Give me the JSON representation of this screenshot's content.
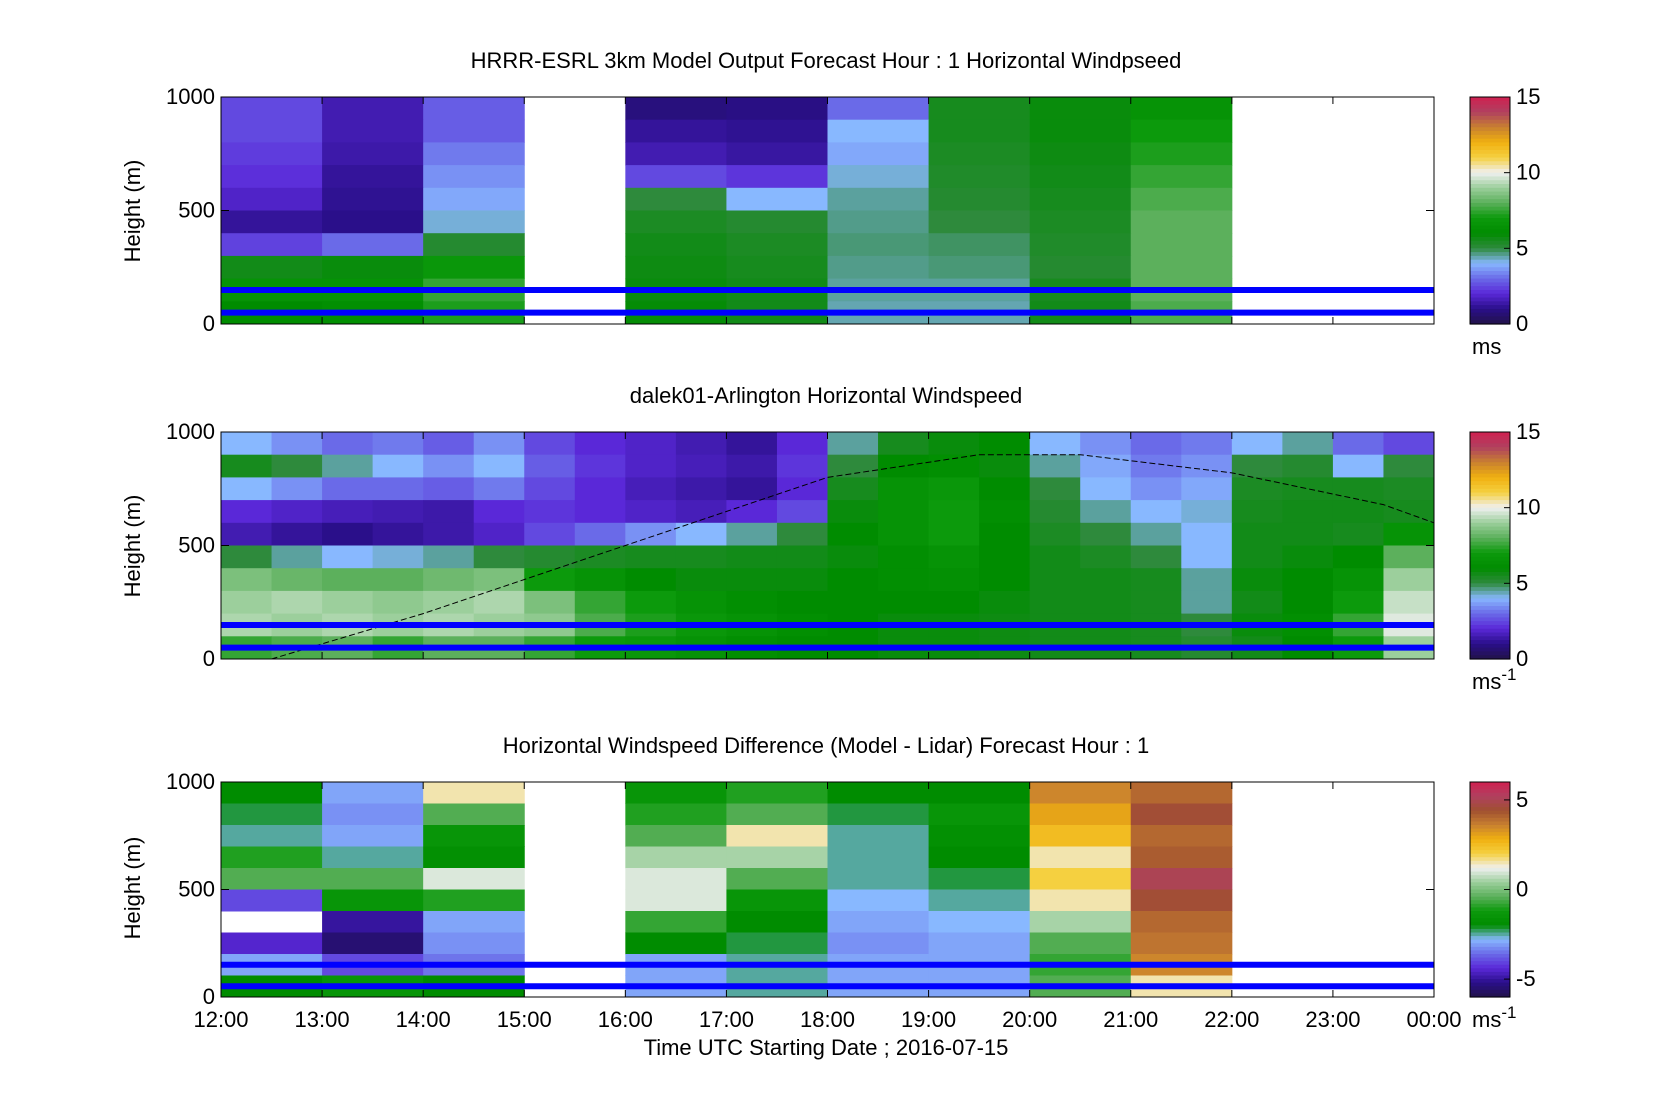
{
  "figure": {
    "xlabel": "Time UTC  Starting Date ; 2016-07-15"
  },
  "colors": {
    "lidar_line": "#0000ff",
    "windspeed_cmap": [
      "#22124a",
      "#2a0f8a",
      "#5a28d8",
      "#6a6ae8",
      "#88b8ff",
      "#2e8a3c",
      "#008c00",
      "#0c9a0c",
      "#5cb05c",
      "#9ccf9c",
      "#f0f0f0",
      "#f5d040",
      "#f0b010",
      "#c88030",
      "#b04060",
      "#d02050"
    ],
    "diff_cmap": [
      "#22124a",
      "#2a0f8a",
      "#5a28d8",
      "#6a6ae8",
      "#88b8ff",
      "#008c00",
      "#0c9a0c",
      "#5cb05c",
      "#9ccf9c",
      "#f0f0f0",
      "#f5d040",
      "#f0b010",
      "#c88030",
      "#a05030",
      "#b04060",
      "#d02050"
    ]
  },
  "chart_data": [
    {
      "type": "heatmap",
      "title": "HRRR-ESRL 3km Model Output   Forecast Hour : 1 Horizontal Windpseed",
      "ylabel": "Height (m)",
      "ylim": [
        0,
        1000
      ],
      "yticks": [
        0,
        500,
        1000
      ],
      "xlim": [
        "12:00",
        "00:00"
      ],
      "colorbar": {
        "label": "ms",
        "ticks": [
          0,
          5,
          10,
          15
        ],
        "range": [
          0,
          15
        ]
      },
      "horizontal_lines_m": [
        150,
        50
      ],
      "x_bins": [
        "12:00",
        "13:00",
        "14:00",
        "15:00",
        "16:00",
        "17:00",
        "18:00",
        "19:00",
        "20:00",
        "21:00",
        "22:00",
        "23:00"
      ],
      "height_bins_m": [
        950,
        850,
        750,
        650,
        550,
        450,
        350,
        250,
        150,
        50
      ],
      "values": [
        [
          2.5,
          1.5,
          2.8,
          null,
          0.8,
          0.9,
          3.0,
          5.5,
          5.8,
          6.5,
          null,
          null
        ],
        [
          2.5,
          1.5,
          2.8,
          null,
          1.2,
          1.1,
          4.0,
          5.5,
          5.8,
          7.0,
          null,
          null
        ],
        [
          2.3,
          1.4,
          3.2,
          null,
          1.5,
          1.3,
          3.8,
          5.4,
          5.7,
          7.2,
          null,
          null
        ],
        [
          2.1,
          1.2,
          3.5,
          null,
          2.5,
          2.2,
          4.2,
          5.3,
          5.6,
          7.5,
          null,
          null
        ],
        [
          1.8,
          1.1,
          3.8,
          null,
          5.0,
          4.0,
          4.5,
          5.2,
          5.5,
          7.8,
          null,
          null
        ],
        [
          1.2,
          1.0,
          4.2,
          null,
          5.4,
          5.2,
          4.6,
          5.0,
          5.4,
          8.0,
          null,
          null
        ],
        [
          2.4,
          3.0,
          5.2,
          null,
          5.6,
          5.4,
          4.7,
          4.8,
          5.3,
          8.0,
          null,
          null
        ],
        [
          5.6,
          5.8,
          6.8,
          null,
          5.7,
          5.5,
          4.6,
          4.7,
          5.2,
          8.0,
          null,
          null
        ],
        [
          6.5,
          6.5,
          7.5,
          null,
          5.8,
          5.6,
          4.5,
          4.5,
          5.5,
          8.0,
          null,
          null
        ],
        [
          6.0,
          6.2,
          7.2,
          null,
          5.9,
          5.6,
          4.4,
          4.4,
          5.6,
          7.8,
          null,
          null
        ]
      ]
    },
    {
      "type": "heatmap",
      "title": "dalek01-Arlington  Horizontal Windspeed",
      "ylabel": "Height (m)",
      "ylim": [
        0,
        1000
      ],
      "yticks": [
        0,
        500,
        1000
      ],
      "xlim": [
        "12:00",
        "00:00"
      ],
      "colorbar": {
        "label": "ms",
        "label_superscript": "-1",
        "ticks": [
          0,
          5,
          10,
          15
        ],
        "range": [
          0,
          15
        ]
      },
      "horizontal_lines_m": [
        150,
        50
      ],
      "x_bins": [
        "12:00",
        "12:30",
        "13:00",
        "13:30",
        "14:00",
        "14:30",
        "15:00",
        "15:30",
        "16:00",
        "16:30",
        "17:00",
        "17:30",
        "18:00",
        "18:30",
        "19:00",
        "19:30",
        "20:00",
        "20:30",
        "21:00",
        "21:30",
        "22:00",
        "22:30",
        "23:00",
        "23:30"
      ],
      "height_bins_m": [
        950,
        850,
        750,
        650,
        550,
        450,
        350,
        250,
        150,
        50
      ],
      "values": [
        [
          4.0,
          3.5,
          3.0,
          3.2,
          2.8,
          3.5,
          2.5,
          2.0,
          1.8,
          1.5,
          1.2,
          2.0,
          4.5,
          5.5,
          5.8,
          6.0,
          4.0,
          3.5,
          3.0,
          3.2,
          4.0,
          4.5,
          3.0,
          2.5
        ],
        [
          5.5,
          5.0,
          4.5,
          4.0,
          3.5,
          4.0,
          2.8,
          2.2,
          1.8,
          1.6,
          1.4,
          2.2,
          5.0,
          6.0,
          6.2,
          5.8,
          4.5,
          3.8,
          3.2,
          3.5,
          5.0,
          5.2,
          4.0,
          5.0
        ],
        [
          4.0,
          3.5,
          3.0,
          3.0,
          2.8,
          3.2,
          2.5,
          2.0,
          1.6,
          1.4,
          1.2,
          2.0,
          5.5,
          6.5,
          6.8,
          6.0,
          5.0,
          4.0,
          3.5,
          3.8,
          5.4,
          5.5,
          5.5,
          5.4
        ],
        [
          2.0,
          1.8,
          1.6,
          1.5,
          1.4,
          2.0,
          2.2,
          2.0,
          1.8,
          1.6,
          2.0,
          2.5,
          5.8,
          6.5,
          7.0,
          6.2,
          5.2,
          4.5,
          4.0,
          4.2,
          5.5,
          5.6,
          5.6,
          5.5
        ],
        [
          1.5,
          1.2,
          1.0,
          1.2,
          1.4,
          1.8,
          2.5,
          3.0,
          3.5,
          4.0,
          4.5,
          5.0,
          6.0,
          6.5,
          7.0,
          6.0,
          5.4,
          5.0,
          4.5,
          4.0,
          5.6,
          5.6,
          5.5,
          6.5
        ],
        [
          5.0,
          4.5,
          4.0,
          4.2,
          4.5,
          5.0,
          5.2,
          5.4,
          5.5,
          5.5,
          5.6,
          5.6,
          5.8,
          6.2,
          6.5,
          6.0,
          5.6,
          5.4,
          5.0,
          4.0,
          5.6,
          5.8,
          6.0,
          8.0
        ],
        [
          8.5,
          8.2,
          8.0,
          8.0,
          8.3,
          8.5,
          7.0,
          6.5,
          6.0,
          5.8,
          5.8,
          5.8,
          6.0,
          6.2,
          6.3,
          6.0,
          5.6,
          5.6,
          5.5,
          4.5,
          5.8,
          6.0,
          6.5,
          9.0
        ],
        [
          9.0,
          9.2,
          9.0,
          8.8,
          9.0,
          9.2,
          8.5,
          7.5,
          7.0,
          6.5,
          6.2,
          6.0,
          6.0,
          6.0,
          6.0,
          5.8,
          5.6,
          5.6,
          5.5,
          4.5,
          5.6,
          6.0,
          7.0,
          9.5
        ],
        [
          9.2,
          9.0,
          9.2,
          9.0,
          9.2,
          9.0,
          8.8,
          7.8,
          7.2,
          6.8,
          6.5,
          6.2,
          6.0,
          5.8,
          5.8,
          5.7,
          5.6,
          5.6,
          5.5,
          5.0,
          5.8,
          6.2,
          7.5,
          9.8
        ],
        [
          7.5,
          7.8,
          8.0,
          7.5,
          8.0,
          8.0,
          7.5,
          7.0,
          6.8,
          6.5,
          6.2,
          6.0,
          6.0,
          5.8,
          5.8,
          5.7,
          5.6,
          5.6,
          5.5,
          5.2,
          5.6,
          6.0,
          7.0,
          9.0
        ]
      ],
      "overlay_dashed_curve": {
        "x": [
          "12:30",
          "14:00",
          "16:00",
          "18:00",
          "19:30",
          "20:30",
          "22:00",
          "23:30",
          "00:00"
        ],
        "y": [
          0,
          200,
          500,
          800,
          900,
          900,
          820,
          680,
          600
        ]
      }
    },
    {
      "type": "heatmap",
      "title": "Horizontal Windspeed Difference (Model - Lidar) Forecast Hour : 1",
      "ylabel": "Height (m)",
      "ylim": [
        0,
        1000
      ],
      "yticks": [
        0,
        500,
        1000
      ],
      "xlim": [
        "12:00",
        "00:00"
      ],
      "xticks": [
        "12:00",
        "13:00",
        "14:00",
        "15:00",
        "16:00",
        "17:00",
        "18:00",
        "19:00",
        "20:00",
        "21:00",
        "22:00",
        "23:00",
        "00:00"
      ],
      "colorbar": {
        "label": "ms",
        "label_superscript": "-1",
        "ticks": [
          -5,
          0,
          5
        ],
        "range": [
          -6,
          6
        ]
      },
      "horizontal_lines_m": [
        150,
        50
      ],
      "x_bins": [
        "12:00",
        "13:00",
        "14:00",
        "15:00",
        "16:00",
        "17:00",
        "18:00",
        "19:00",
        "20:00",
        "21:00",
        "22:00",
        "23:00"
      ],
      "height_bins_m": [
        950,
        850,
        750,
        650,
        550,
        450,
        350,
        250,
        150,
        50
      ],
      "values": [
        [
          -2.0,
          -3.0,
          1.5,
          null,
          -1.5,
          -1.0,
          -2.0,
          -2.0,
          3.5,
          4.0,
          null,
          null
        ],
        [
          -2.2,
          -3.2,
          -0.5,
          null,
          -1.0,
          -0.5,
          -2.2,
          -1.5,
          3.0,
          4.5,
          null,
          null
        ],
        [
          -2.5,
          -3.0,
          -1.5,
          null,
          -0.5,
          1.5,
          -2.5,
          -1.8,
          2.5,
          4.0,
          null,
          null
        ],
        [
          -1.0,
          -2.5,
          -1.8,
          null,
          0.5,
          0.5,
          -2.5,
          -2.0,
          1.5,
          4.2,
          null,
          null
        ],
        [
          -0.5,
          -0.5,
          1.0,
          null,
          1.0,
          -0.5,
          -2.5,
          -2.2,
          2.0,
          5.0,
          null,
          null
        ],
        [
          -4.0,
          -1.5,
          -1.0,
          null,
          1.0,
          -1.5,
          -2.8,
          -2.5,
          1.5,
          4.5,
          null,
          null
        ],
        [
          null,
          -5.0,
          -3.0,
          null,
          -0.8,
          -2.0,
          -3.0,
          -2.8,
          0.5,
          4.0,
          null,
          null
        ],
        [
          -4.5,
          -5.5,
          -3.2,
          null,
          -2.0,
          -2.2,
          -3.2,
          -3.0,
          -0.5,
          3.8,
          null,
          null
        ],
        [
          -3.0,
          -4.0,
          -3.5,
          null,
          -3.0,
          -2.5,
          -3.0,
          -3.0,
          -0.8,
          3.5,
          null,
          null
        ],
        [
          -2.0,
          -1.5,
          -2.0,
          null,
          -3.0,
          -2.5,
          -3.0,
          -3.0,
          -0.5,
          1.5,
          null,
          null
        ]
      ]
    }
  ]
}
